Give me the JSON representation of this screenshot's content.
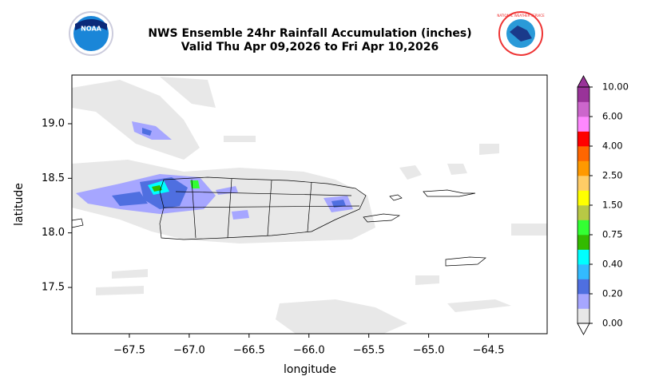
{
  "header": {
    "title": "NWS Ensemble 24hr Rainfall Accumulation (inches)",
    "subtitle": "Valid Thu Apr 09,2026 to Fri Apr 10,2026",
    "left_logo_text": "NOAA",
    "right_logo_text": "NATIONAL WEATHER SERVICE"
  },
  "map": {
    "xlabel": "longitude",
    "ylabel": "latitude",
    "xlim": [
      -67.98,
      -64.01
    ],
    "ylim": [
      17.076,
      19.446
    ],
    "xticks": [
      {
        "value": -67.5,
        "label": "−67.5"
      },
      {
        "value": -67.0,
        "label": "−67.0"
      },
      {
        "value": -66.5,
        "label": "−66.5"
      },
      {
        "value": -66.0,
        "label": "−66.0"
      },
      {
        "value": -65.5,
        "label": "−65.5"
      },
      {
        "value": -65.0,
        "label": "−65.0"
      },
      {
        "value": -64.5,
        "label": "−64.5"
      }
    ],
    "yticks": [
      {
        "value": 17.5,
        "label": "17.5"
      },
      {
        "value": 18.0,
        "label": "18.0"
      },
      {
        "value": 18.5,
        "label": "18.5"
      },
      {
        "value": 19.0,
        "label": "19.0"
      }
    ]
  },
  "colorbar": {
    "ticks": [
      {
        "value": 0,
        "label": "0.00"
      },
      {
        "value": 0.2,
        "label": "0.20"
      },
      {
        "value": 0.4,
        "label": "0.40"
      },
      {
        "value": 0.75,
        "label": "0.75"
      },
      {
        "value": 1.5,
        "label": "1.50"
      },
      {
        "value": 2.5,
        "label": "2.50"
      },
      {
        "value": 4,
        "label": "4.00"
      },
      {
        "value": 6,
        "label": "6.00"
      },
      {
        "value": 10,
        "label": "10.00"
      }
    ],
    "colors": [
      "#e8e8e8",
      "#a6a6ff",
      "#4f6fe0",
      "#33bbff",
      "#00ffff",
      "#33bb00",
      "#33ff33",
      "#b8c845",
      "#ffff00",
      "#ffcc66",
      "#ff9900",
      "#ff6600",
      "#ff0000",
      "#ff88ff",
      "#cc66cc",
      "#993399"
    ]
  }
}
